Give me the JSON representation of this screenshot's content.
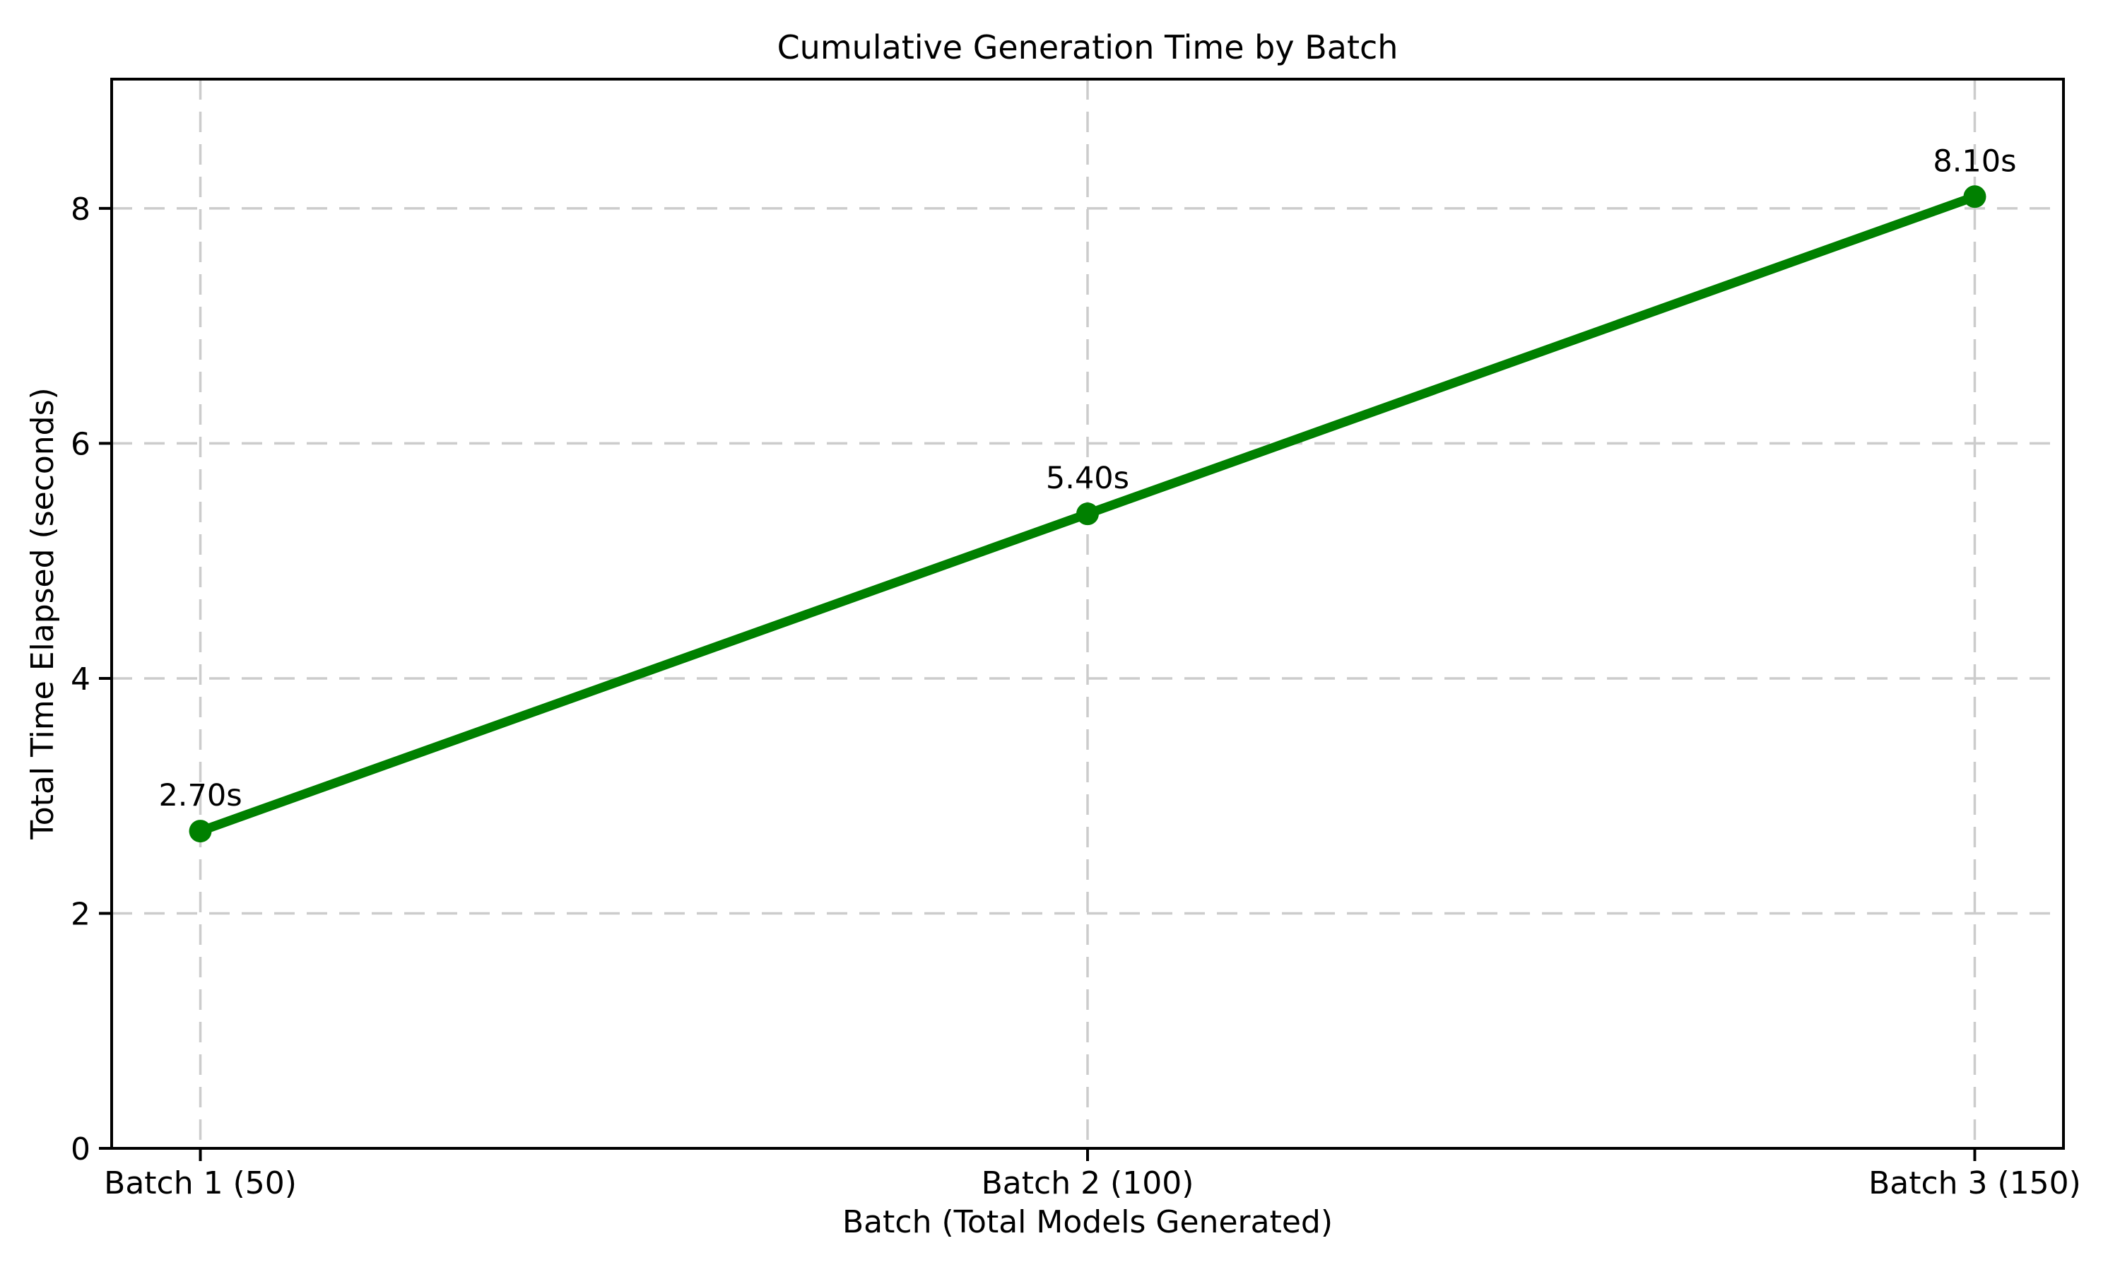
{
  "page": {
    "background": "#ffffff",
    "text_color": "#000000"
  },
  "chart_data": {
    "type": "line",
    "title": "Cumulative Generation Time by Batch",
    "xlabel": "Batch (Total Models Generated)",
    "ylabel": "Total Time Elapsed (seconds)",
    "categories": [
      "Batch 1 (50)",
      "Batch 2 (100)",
      "Batch 3 (150)"
    ],
    "series": [
      {
        "name": "cumulative-generation-time",
        "values": [
          2.7,
          5.4,
          8.1
        ],
        "point_labels": [
          "2.70s",
          "5.40s",
          "8.10s"
        ],
        "color": "#008000",
        "marker": "circle"
      }
    ],
    "y_ticks": [
      0,
      2,
      4,
      6,
      8
    ],
    "ylim": [
      0,
      9.1
    ],
    "grid": true,
    "grid_style": "dashed",
    "grid_color": "#cccccc",
    "legend_position": "none"
  }
}
